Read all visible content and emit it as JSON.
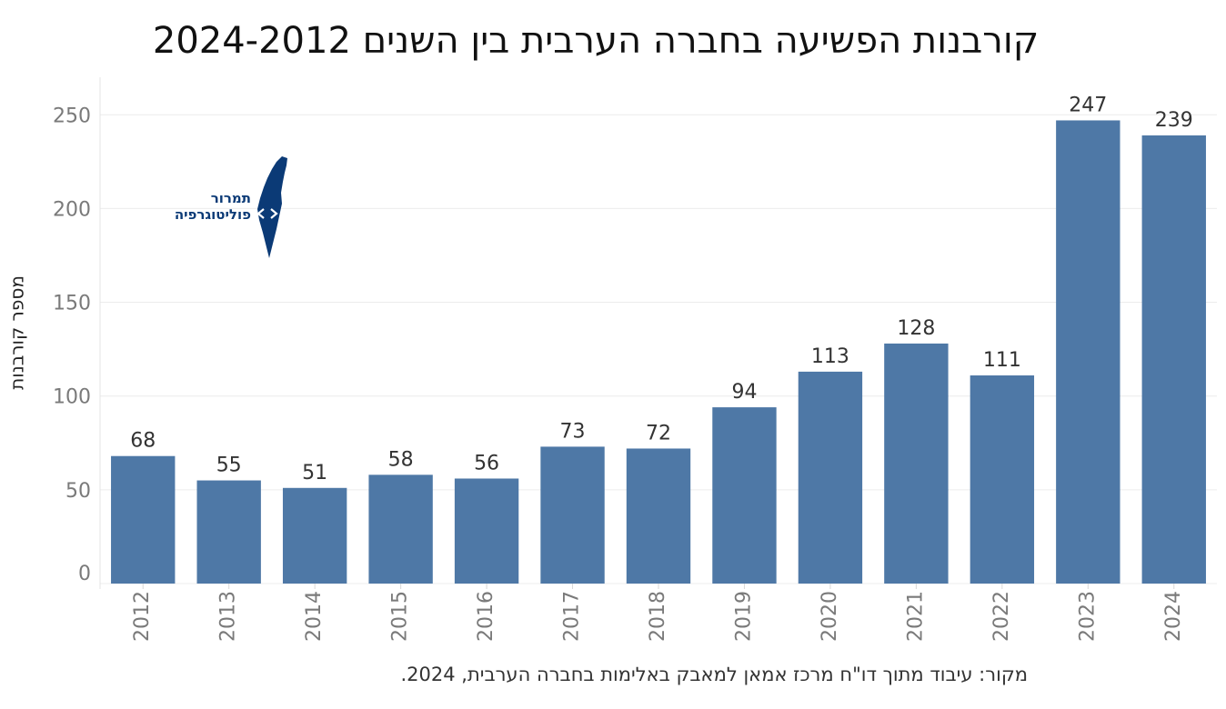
{
  "chart_data": {
    "type": "bar",
    "title": "קורבנות הפשיעה בחברה הערבית בין השנים 2024-2012",
    "xlabel": "",
    "ylabel": "מספר קורבנות",
    "categories": [
      "2012",
      "2013",
      "2014",
      "2015",
      "2016",
      "2017",
      "2018",
      "2019",
      "2020",
      "2021",
      "2022",
      "2023",
      "2024"
    ],
    "values": [
      68,
      55,
      51,
      58,
      56,
      73,
      72,
      94,
      113,
      128,
      111,
      247,
      239
    ],
    "ylim": [
      0,
      270
    ],
    "yticks": [
      0,
      50,
      100,
      150,
      200,
      250
    ],
    "grid": true,
    "bar_color": "#4e78a6"
  },
  "source_note": "מקור: עיבוד מתוך דו\"ח מרכז אמאן למאבק באלימות בחברה הערבית, 2024.",
  "logo": {
    "line1": "תמרור",
    "line2": "פוליטוגרפיה",
    "icon": "israel-map-icon",
    "color": "#0b3a76"
  }
}
